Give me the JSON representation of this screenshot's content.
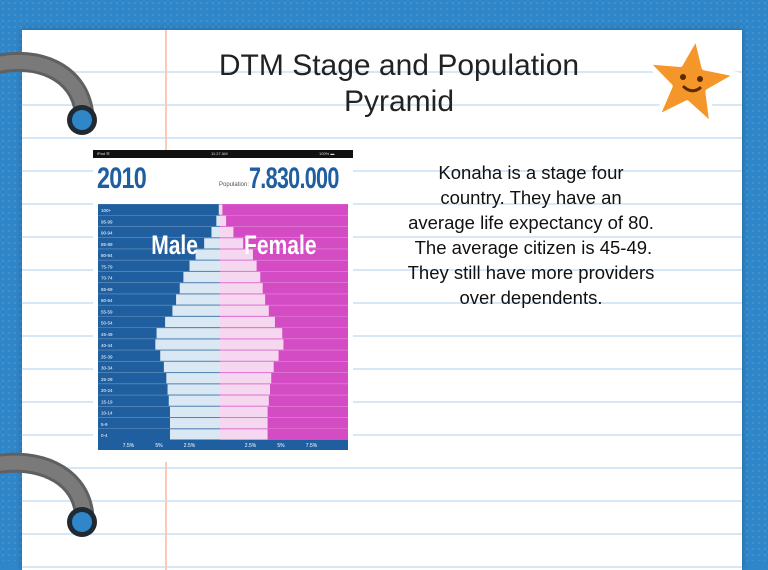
{
  "slide": {
    "title_line1": "DTM Stage and Population",
    "title_line2": "Pyramid",
    "description": [
      "Konaha is a stage four",
      "country. They have an",
      "average life expectancy of 80.",
      " The average citizen is 45-49.",
      "They still have more providers",
      "over dependents."
    ]
  },
  "phone_status": {
    "left": "iPad ☰",
    "center": "11:27 AM",
    "right": "100% ▬"
  },
  "chart_data": {
    "type": "bar",
    "orientation": "horizontal-pyramid",
    "year": "2010",
    "population_label": "Population:",
    "population_value": "7.830.000",
    "categories": [
      "100+",
      "95-99",
      "90-94",
      "85-89",
      "80-84",
      "75-79",
      "70-74",
      "65-69",
      "60-64",
      "55-59",
      "50-54",
      "45-49",
      "40-44",
      "35-39",
      "30-34",
      "25-29",
      "20-24",
      "15-19",
      "10-14",
      "5-9",
      "0-4"
    ],
    "series": [
      {
        "name": "Male",
        "values": [
          0.1,
          0.3,
          0.7,
          1.3,
          2.0,
          2.5,
          3.0,
          3.3,
          3.6,
          3.9,
          4.5,
          5.2,
          5.3,
          4.9,
          4.6,
          4.4,
          4.3,
          4.2,
          4.1,
          4.1,
          4.1
        ]
      },
      {
        "name": "Female",
        "values": [
          0.2,
          0.5,
          1.1,
          1.9,
          2.7,
          3.0,
          3.3,
          3.5,
          3.7,
          4.0,
          4.5,
          5.1,
          5.2,
          4.8,
          4.4,
          4.2,
          4.1,
          4.0,
          3.9,
          3.9,
          3.9
        ]
      }
    ],
    "x_ticks": [
      "7.5%",
      "5%",
      "2.5%",
      "2.5%",
      "5%",
      "7.5%"
    ],
    "xlim": [
      -10,
      10
    ],
    "colors": {
      "male_bg": "#1f5fa0",
      "male_bar": "#dae8f3",
      "female_bg": "#d44cc4",
      "female_bar": "#f5d8ef",
      "year_text": "#1f5fa0"
    }
  }
}
